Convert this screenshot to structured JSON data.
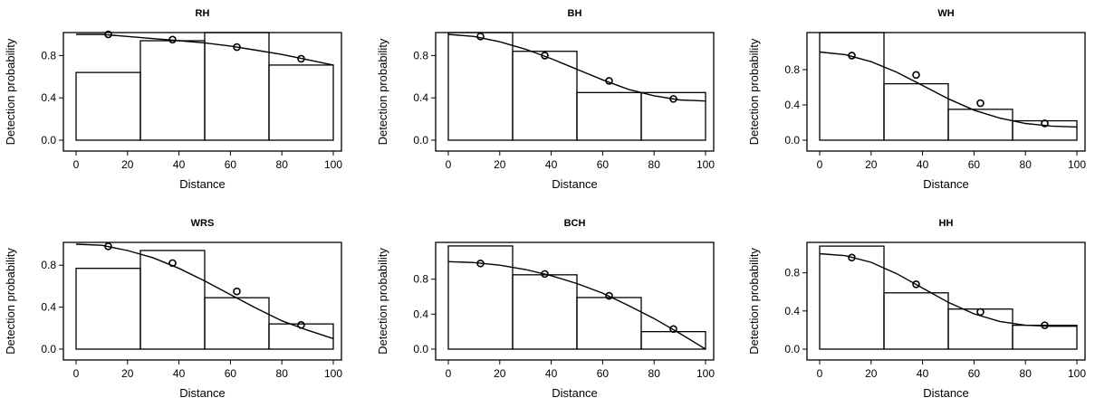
{
  "chart_data": [
    {
      "type": "bar",
      "title": "RH",
      "xlabel": "Distance",
      "ylabel": "Detection probability",
      "xlim": [
        0,
        100
      ],
      "ylim": [
        0,
        1.0
      ],
      "xticks": [
        "0",
        "20",
        "40",
        "60",
        "80",
        "100"
      ],
      "yticks": [
        "0.0",
        "0.4",
        "0.8"
      ],
      "bins": [
        [
          0,
          25
        ],
        [
          25,
          50
        ],
        [
          50,
          75
        ],
        [
          75,
          100
        ]
      ],
      "values": [
        0.64,
        0.94,
        1.02,
        0.71
      ],
      "points": {
        "x": [
          12.5,
          37.5,
          62.5,
          87.5
        ],
        "y": [
          1.0,
          0.95,
          0.88,
          0.77
        ]
      },
      "curve": {
        "x": [
          0,
          10,
          20,
          30,
          40,
          50,
          60,
          70,
          80,
          90,
          100
        ],
        "y": [
          1.0,
          1.0,
          0.98,
          0.96,
          0.94,
          0.92,
          0.89,
          0.85,
          0.81,
          0.76,
          0.71
        ]
      }
    },
    {
      "type": "bar",
      "title": "BH",
      "xlabel": "Distance",
      "ylabel": "Detection probability",
      "xlim": [
        0,
        100
      ],
      "ylim": [
        0,
        1.0
      ],
      "xticks": [
        "0",
        "20",
        "40",
        "60",
        "80",
        "100"
      ],
      "yticks": [
        "0.0",
        "0.4",
        "0.8"
      ],
      "bins": [
        [
          0,
          25
        ],
        [
          25,
          50
        ],
        [
          50,
          75
        ],
        [
          75,
          100
        ]
      ],
      "values": [
        1.11,
        0.84,
        0.45,
        0.45
      ],
      "points": {
        "x": [
          12.5,
          37.5,
          62.5,
          87.5
        ],
        "y": [
          0.98,
          0.8,
          0.56,
          0.39
        ]
      },
      "curve": {
        "x": [
          0,
          10,
          20,
          30,
          40,
          50,
          60,
          70,
          80,
          90,
          100
        ],
        "y": [
          1.0,
          0.98,
          0.93,
          0.86,
          0.77,
          0.67,
          0.57,
          0.48,
          0.42,
          0.38,
          0.37
        ]
      }
    },
    {
      "type": "bar",
      "title": "WH",
      "xlabel": "Distance",
      "ylabel": "Detection probability",
      "xlim": [
        0,
        100
      ],
      "ylim": [
        0,
        1.2
      ],
      "xticks": [
        "0",
        "20",
        "40",
        "60",
        "80",
        "100"
      ],
      "yticks": [
        "0.0",
        "0.4",
        "0.8"
      ],
      "bins": [
        [
          0,
          25
        ],
        [
          25,
          50
        ],
        [
          50,
          75
        ],
        [
          75,
          100
        ]
      ],
      "values": [
        1.25,
        0.64,
        0.35,
        0.22
      ],
      "points": {
        "x": [
          12.5,
          37.5,
          62.5,
          87.5
        ],
        "y": [
          0.96,
          0.74,
          0.42,
          0.19
        ]
      },
      "curve": {
        "x": [
          0,
          10,
          20,
          30,
          40,
          50,
          60,
          70,
          80,
          90,
          100
        ],
        "y": [
          1.0,
          0.97,
          0.89,
          0.77,
          0.62,
          0.47,
          0.34,
          0.25,
          0.19,
          0.16,
          0.15
        ]
      }
    },
    {
      "type": "bar",
      "title": "WRS",
      "xlabel": "Distance",
      "ylabel": "Detection probability",
      "xlim": [
        0,
        100
      ],
      "ylim": [
        0,
        1.0
      ],
      "xticks": [
        "0",
        "20",
        "40",
        "60",
        "80",
        "100"
      ],
      "yticks": [
        "0.0",
        "0.4",
        "0.8"
      ],
      "bins": [
        [
          0,
          25
        ],
        [
          25,
          50
        ],
        [
          50,
          75
        ],
        [
          75,
          100
        ]
      ],
      "values": [
        0.77,
        0.94,
        0.49,
        0.24
      ],
      "points": {
        "x": [
          12.5,
          37.5,
          62.5,
          87.5
        ],
        "y": [
          0.98,
          0.82,
          0.55,
          0.23
        ]
      },
      "curve": {
        "x": [
          0,
          10,
          20,
          30,
          40,
          50,
          60,
          70,
          80,
          90,
          100
        ],
        "y": [
          1.0,
          0.99,
          0.94,
          0.87,
          0.77,
          0.65,
          0.52,
          0.39,
          0.27,
          0.18,
          0.1
        ]
      }
    },
    {
      "type": "bar",
      "title": "BCH",
      "xlabel": "Distance",
      "ylabel": "Detection probability",
      "xlim": [
        0,
        100
      ],
      "ylim": [
        0,
        1.2
      ],
      "xticks": [
        "0",
        "20",
        "40",
        "60",
        "80",
        "100"
      ],
      "yticks": [
        "0.0",
        "0.4",
        "0.8"
      ],
      "bins": [
        [
          0,
          25
        ],
        [
          25,
          50
        ],
        [
          50,
          75
        ],
        [
          75,
          100
        ]
      ],
      "values": [
        1.18,
        0.85,
        0.59,
        0.2
      ],
      "points": {
        "x": [
          12.5,
          37.5,
          62.5,
          87.5
        ],
        "y": [
          0.98,
          0.86,
          0.61,
          0.23
        ]
      },
      "curve": {
        "x": [
          0,
          10,
          20,
          30,
          40,
          50,
          60,
          70,
          80,
          90,
          100
        ],
        "y": [
          1.0,
          0.99,
          0.96,
          0.91,
          0.84,
          0.75,
          0.64,
          0.5,
          0.35,
          0.18,
          0.0
        ]
      }
    },
    {
      "type": "bar",
      "title": "HH",
      "xlabel": "Distance",
      "ylabel": "Detection probability",
      "xlim": [
        0,
        100
      ],
      "ylim": [
        0,
        1.1
      ],
      "xticks": [
        "0",
        "20",
        "40",
        "60",
        "80",
        "100"
      ],
      "yticks": [
        "0.0",
        "0.4",
        "0.8"
      ],
      "bins": [
        [
          0,
          25
        ],
        [
          25,
          50
        ],
        [
          50,
          75
        ],
        [
          75,
          100
        ]
      ],
      "values": [
        1.08,
        0.59,
        0.42,
        0.25
      ],
      "points": {
        "x": [
          12.5,
          37.5,
          62.5,
          87.5
        ],
        "y": [
          0.96,
          0.68,
          0.39,
          0.25
        ]
      },
      "curve": {
        "x": [
          0,
          10,
          20,
          30,
          40,
          50,
          60,
          70,
          80,
          90,
          100
        ],
        "y": [
          1.0,
          0.98,
          0.91,
          0.79,
          0.64,
          0.49,
          0.37,
          0.29,
          0.25,
          0.24,
          0.24
        ]
      }
    }
  ]
}
